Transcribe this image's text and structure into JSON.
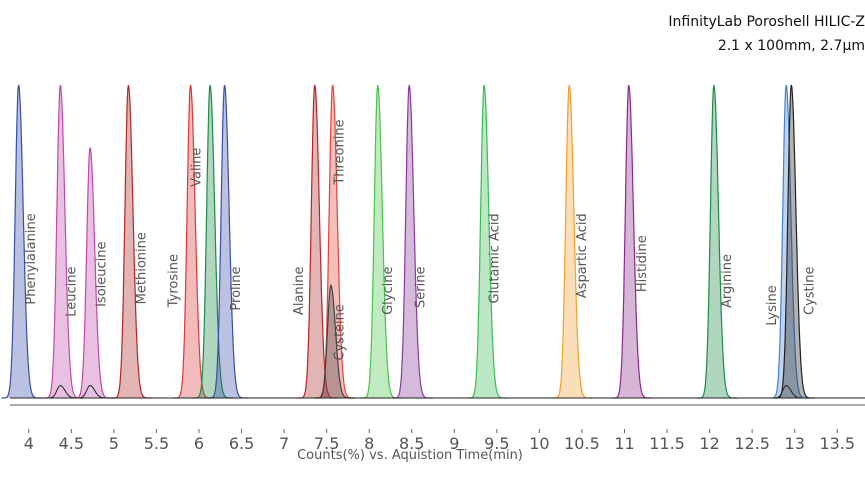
{
  "column": {
    "name": "InfinityLab Poroshell HILIC-Z",
    "dimensions": "2.1 x 100mm, 2.7µm"
  },
  "chart_data": {
    "type": "line",
    "title": "",
    "xlabel": "Counts(%) vs. Aquistion Time(min)",
    "ylabel": "",
    "xlim": [
      3.8,
      13.7
    ],
    "ylim": [
      0,
      100
    ],
    "xticks": [
      "4",
      "4.5",
      "5",
      "5.5",
      "6",
      "6.5",
      "7",
      "7.5",
      "8",
      "8.5",
      "9",
      "9.5",
      "10",
      "10.5",
      "11",
      "11.5",
      "12",
      "12.5",
      "13",
      "13.5"
    ],
    "grid": false,
    "legend": "none",
    "series": [
      {
        "name": "Phenylalanine",
        "x": 3.88,
        "y": 100,
        "color": "#3a4ea8"
      },
      {
        "name": "Leucine",
        "x": 4.37,
        "y": 100,
        "color": "#c04aa8"
      },
      {
        "name": "Isoleucine",
        "x": 4.72,
        "y": 80,
        "color": "#c04aa8"
      },
      {
        "name": "Methionine",
        "x": 5.17,
        "y": 100,
        "color": "#b02828"
      },
      {
        "name": "Tyrosine",
        "x": 5.9,
        "y": 100,
        "color": "#d93a3a"
      },
      {
        "name": "Valine",
        "x": 6.13,
        "y": 100,
        "color": "#1d8a4a"
      },
      {
        "name": "Proline",
        "x": 6.3,
        "y": 100,
        "color": "#3a4ea8"
      },
      {
        "name": "Alanine",
        "x": 7.36,
        "y": 100,
        "color": "#b02828"
      },
      {
        "name": "Threonine",
        "x": 7.57,
        "y": 100,
        "color": "#e0443c"
      },
      {
        "name": "Cysteine",
        "x": 7.55,
        "y": 36,
        "color": "#444444"
      },
      {
        "name": "Glycine",
        "x": 8.1,
        "y": 100,
        "color": "#4bc24b"
      },
      {
        "name": "Serine",
        "x": 8.47,
        "y": 100,
        "color": "#8a3a9a"
      },
      {
        "name": "Glutamic Acid",
        "x": 9.35,
        "y": 100,
        "color": "#3cbb55"
      },
      {
        "name": "Aspartic Acid",
        "x": 10.35,
        "y": 100,
        "color": "#f0a030"
      },
      {
        "name": "Histidine",
        "x": 11.05,
        "y": 100,
        "color": "#8a2a8a"
      },
      {
        "name": "Arginine",
        "x": 12.05,
        "y": 100,
        "color": "#1d8a4a"
      },
      {
        "name": "Lysine",
        "x": 12.9,
        "y": 100,
        "color": "#4a80c8"
      },
      {
        "name": "Cystine",
        "x": 12.96,
        "y": 100,
        "color": "#222222"
      }
    ],
    "minor_peaks": [
      {
        "x": 4.37,
        "y": 4
      },
      {
        "x": 4.72,
        "y": 4
      },
      {
        "x": 12.9,
        "y": 4
      }
    ],
    "peak_labels": [
      {
        "text": "Phenylalanine",
        "x": 4.07,
        "y_top": 59
      },
      {
        "text": "Leucine",
        "x": 4.55,
        "y_top": 42
      },
      {
        "text": "Isoleucine",
        "x": 4.9,
        "y_top": 50
      },
      {
        "text": "Methionine",
        "x": 5.37,
        "y_top": 53
      },
      {
        "text": "Tyrosine",
        "x": 5.75,
        "y_top": 46
      },
      {
        "text": "Valine",
        "x": 6.02,
        "y_top": 80
      },
      {
        "text": "Proline",
        "x": 6.48,
        "y_top": 42
      },
      {
        "text": "Alanine",
        "x": 7.22,
        "y_top": 42
      },
      {
        "text": "Threonine",
        "x": 7.7,
        "y_top": 89
      },
      {
        "text": "Cysteine",
        "x": 7.7,
        "y_top": 30
      },
      {
        "text": "Glycine",
        "x": 8.27,
        "y_top": 42
      },
      {
        "text": "Serine",
        "x": 8.65,
        "y_top": 42
      },
      {
        "text": "Glutamic Acid",
        "x": 9.52,
        "y_top": 59
      },
      {
        "text": "Aspartic Acid",
        "x": 10.55,
        "y_top": 59
      },
      {
        "text": "Histidine",
        "x": 11.25,
        "y_top": 52
      },
      {
        "text": "Arginine",
        "x": 12.25,
        "y_top": 46
      },
      {
        "text": "Lysine",
        "x": 12.78,
        "y_top": 36
      },
      {
        "text": "Cystine",
        "x": 13.22,
        "y_top": 42
      }
    ]
  }
}
